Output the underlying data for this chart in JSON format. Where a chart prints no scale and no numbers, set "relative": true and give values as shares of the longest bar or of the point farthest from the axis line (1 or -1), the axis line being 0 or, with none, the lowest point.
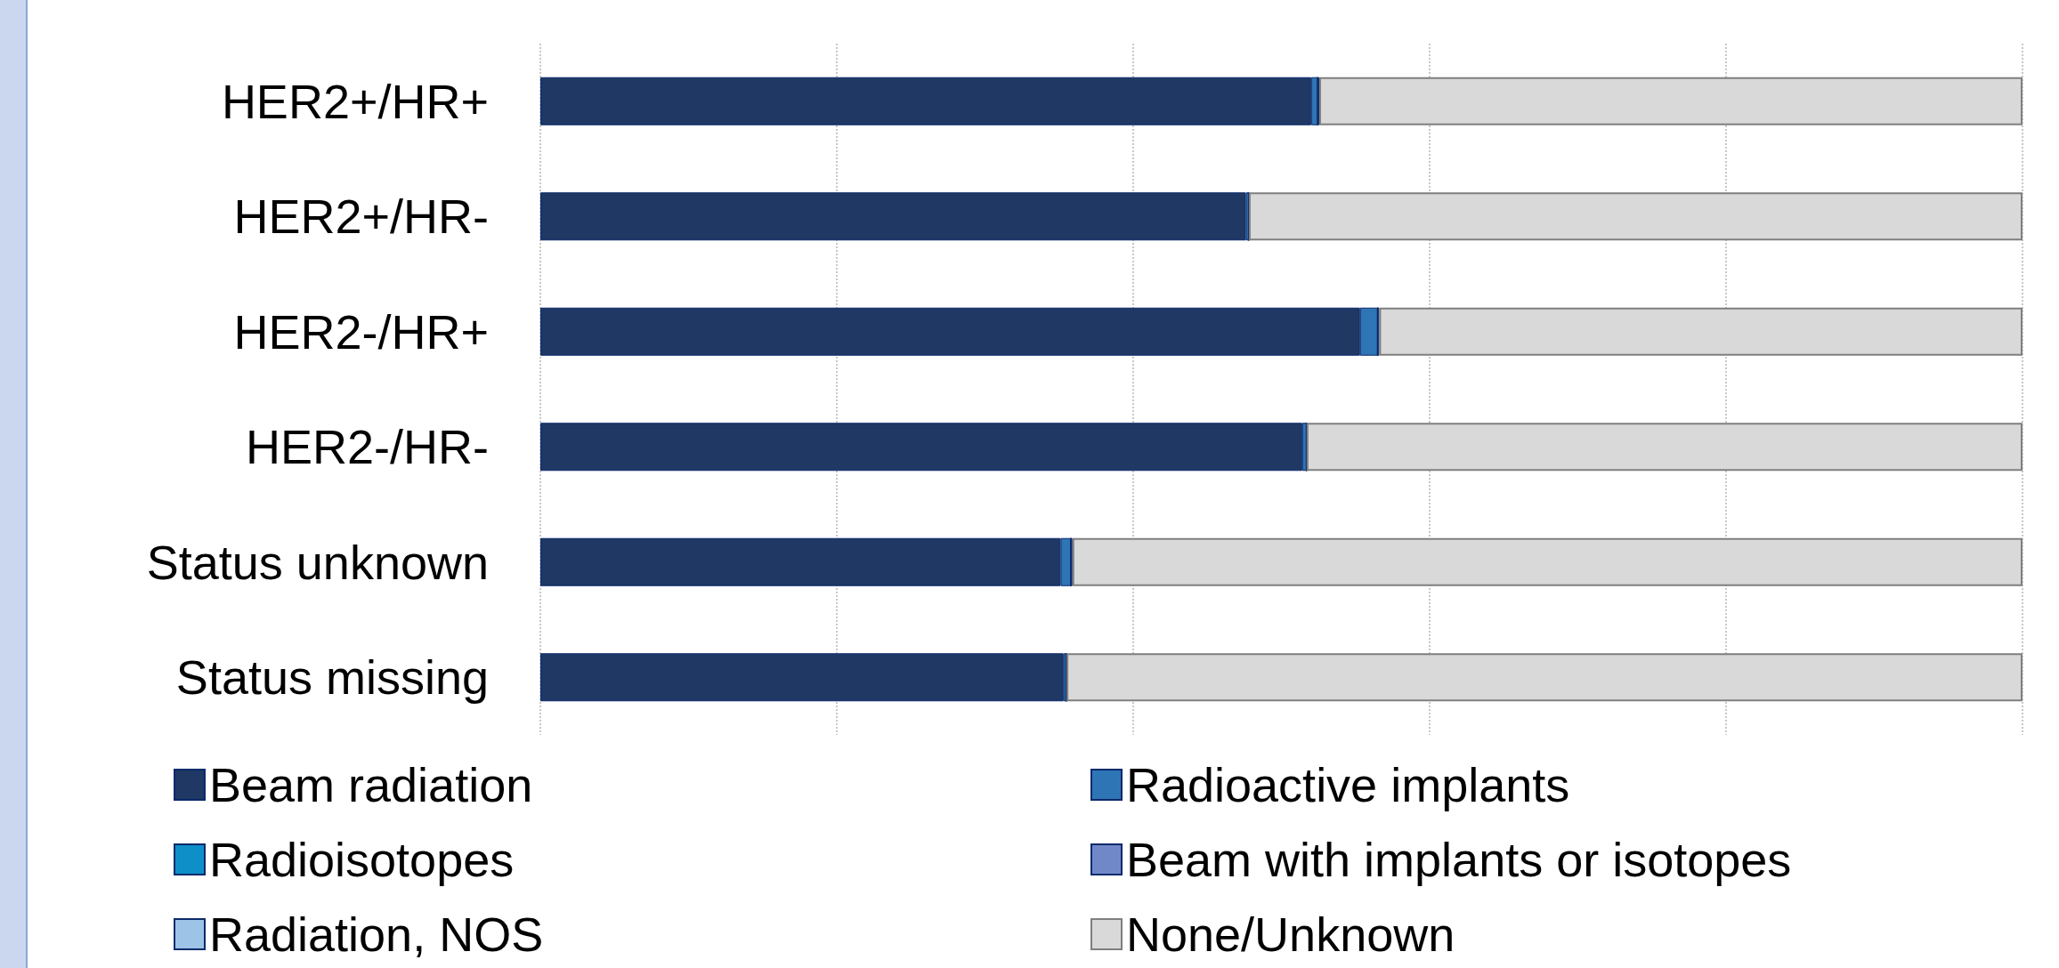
{
  "chart_data": {
    "type": "bar",
    "orientation": "horizontal",
    "stacked": true,
    "relative": true,
    "grid": "x",
    "legend": "bottom",
    "categories": [
      "HER2+/HR+",
      "HER2+/HR-",
      "HER2-/HR+",
      "HER2-/HR-",
      "Status unknown",
      "Status missing"
    ],
    "series": [
      {
        "name": "Beam radiation",
        "color": "#1f3864",
        "values": [
          0.52,
          0.476,
          0.553,
          0.514,
          0.351,
          0.353
        ]
      },
      {
        "name": "Radioactive implants",
        "color": "#2e75b6",
        "values": [
          0.0045,
          0.002,
          0.012,
          0.003,
          0.007,
          0.002
        ]
      },
      {
        "name": "Radioisotopes",
        "color": "#0e8fc8",
        "values": [
          0,
          0,
          0,
          0,
          0,
          0
        ]
      },
      {
        "name": "Beam with implants or isotopes",
        "color": "#7088c8",
        "values": [
          0,
          0,
          0,
          0,
          0,
          0
        ]
      },
      {
        "name": "Radiation, NOS",
        "color": "#9dc3e6",
        "values": [
          0.001,
          0,
          0.001,
          0,
          0.001,
          0
        ]
      },
      {
        "name": "None/Unknown",
        "color": "#d9d9d9",
        "values": [
          0.4745,
          0.522,
          0.434,
          0.483,
          0.641,
          0.645
        ]
      }
    ]
  }
}
